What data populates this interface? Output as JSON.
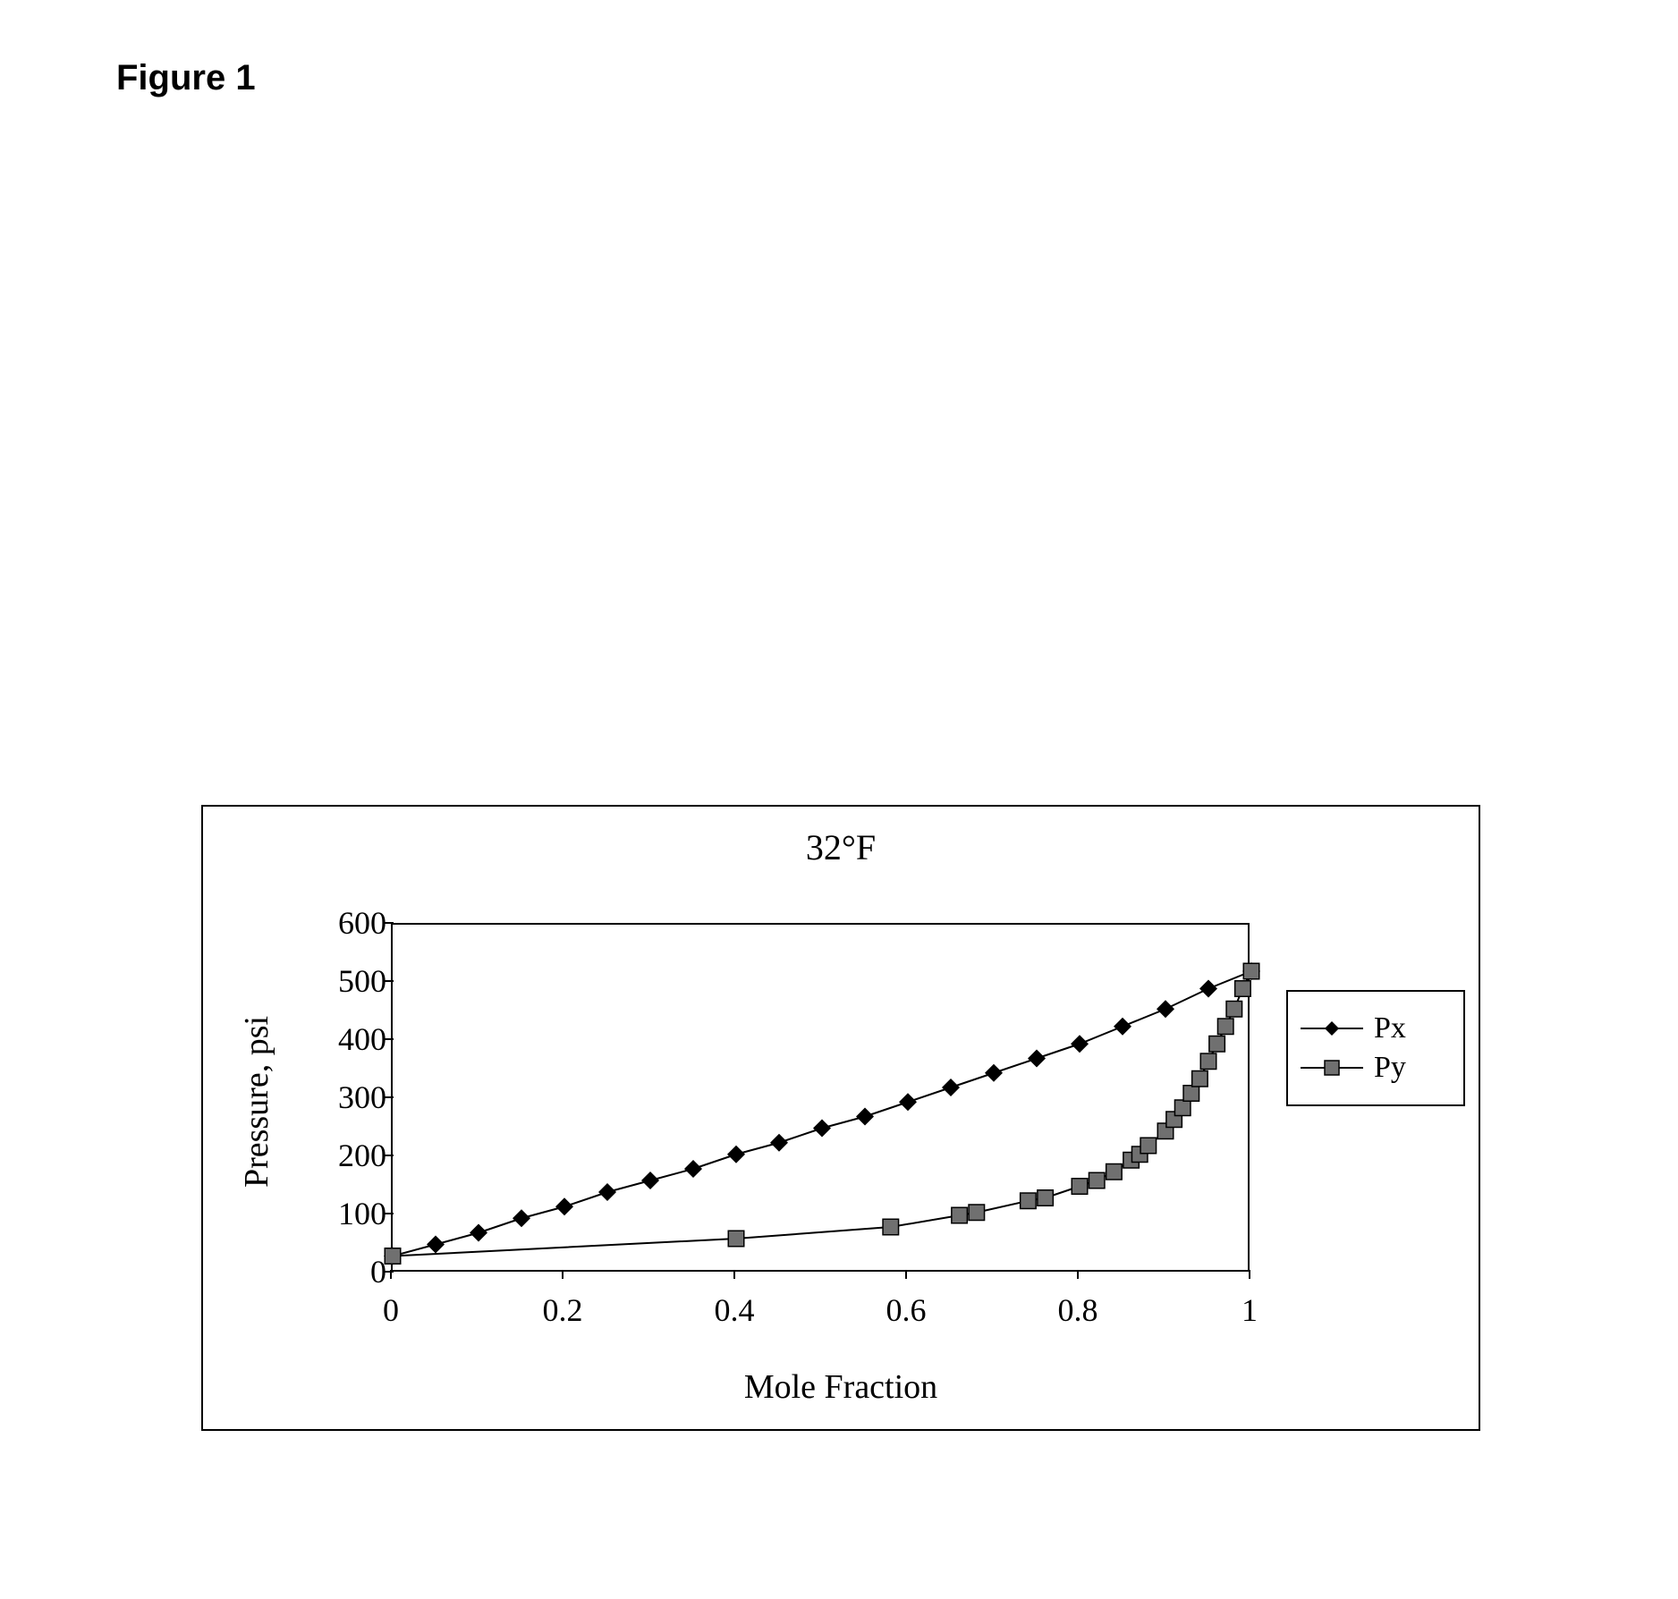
{
  "figure_label": "Figure 1",
  "chart": {
    "type": "line-scatter",
    "title": "32°F",
    "x_axis": {
      "label": "Mole Fraction",
      "min": 0,
      "max": 1,
      "ticks": [
        0,
        0.2,
        0.4,
        0.6,
        0.8,
        1
      ],
      "label_fontsize": 38,
      "tick_fontsize": 36
    },
    "y_axis": {
      "label": "Pressure, psi",
      "min": 0,
      "max": 600,
      "ticks": [
        0,
        100,
        200,
        300,
        400,
        500,
        600
      ],
      "label_fontsize": 38,
      "tick_fontsize": 36
    },
    "background_color": "#ffffff",
    "axis_color": "#000000",
    "line_width": 2,
    "series": [
      {
        "name": "Px",
        "marker": "diamond",
        "marker_size": 14,
        "marker_color": "#000000",
        "line_color": "#000000",
        "data": [
          {
            "x": 0.0,
            "y": 30
          },
          {
            "x": 0.05,
            "y": 50
          },
          {
            "x": 0.1,
            "y": 70
          },
          {
            "x": 0.15,
            "y": 95
          },
          {
            "x": 0.2,
            "y": 115
          },
          {
            "x": 0.25,
            "y": 140
          },
          {
            "x": 0.3,
            "y": 160
          },
          {
            "x": 0.35,
            "y": 180
          },
          {
            "x": 0.4,
            "y": 205
          },
          {
            "x": 0.45,
            "y": 225
          },
          {
            "x": 0.5,
            "y": 250
          },
          {
            "x": 0.55,
            "y": 270
          },
          {
            "x": 0.6,
            "y": 295
          },
          {
            "x": 0.65,
            "y": 320
          },
          {
            "x": 0.7,
            "y": 345
          },
          {
            "x": 0.75,
            "y": 370
          },
          {
            "x": 0.8,
            "y": 395
          },
          {
            "x": 0.85,
            "y": 425
          },
          {
            "x": 0.9,
            "y": 455
          },
          {
            "x": 0.95,
            "y": 490
          },
          {
            "x": 1.0,
            "y": 520
          }
        ]
      },
      {
        "name": "Py",
        "marker": "square",
        "marker_size": 14,
        "marker_color": "#707070",
        "marker_border": "#000000",
        "line_color": "#000000",
        "data": [
          {
            "x": 0.0,
            "y": 30
          },
          {
            "x": 0.4,
            "y": 60
          },
          {
            "x": 0.58,
            "y": 80
          },
          {
            "x": 0.66,
            "y": 100
          },
          {
            "x": 0.68,
            "y": 105
          },
          {
            "x": 0.74,
            "y": 125
          },
          {
            "x": 0.76,
            "y": 130
          },
          {
            "x": 0.8,
            "y": 150
          },
          {
            "x": 0.82,
            "y": 160
          },
          {
            "x": 0.84,
            "y": 175
          },
          {
            "x": 0.86,
            "y": 195
          },
          {
            "x": 0.87,
            "y": 205
          },
          {
            "x": 0.88,
            "y": 220
          },
          {
            "x": 0.9,
            "y": 245
          },
          {
            "x": 0.91,
            "y": 265
          },
          {
            "x": 0.92,
            "y": 285
          },
          {
            "x": 0.93,
            "y": 310
          },
          {
            "x": 0.94,
            "y": 335
          },
          {
            "x": 0.95,
            "y": 365
          },
          {
            "x": 0.96,
            "y": 395
          },
          {
            "x": 0.97,
            "y": 425
          },
          {
            "x": 0.98,
            "y": 455
          },
          {
            "x": 0.99,
            "y": 490
          },
          {
            "x": 1.0,
            "y": 520
          }
        ]
      }
    ],
    "legend": {
      "position": "right",
      "border_color": "#000000",
      "items": [
        {
          "label": "Px",
          "series_index": 0
        },
        {
          "label": "Py",
          "series_index": 1
        }
      ]
    },
    "title_fontsize": 40
  }
}
